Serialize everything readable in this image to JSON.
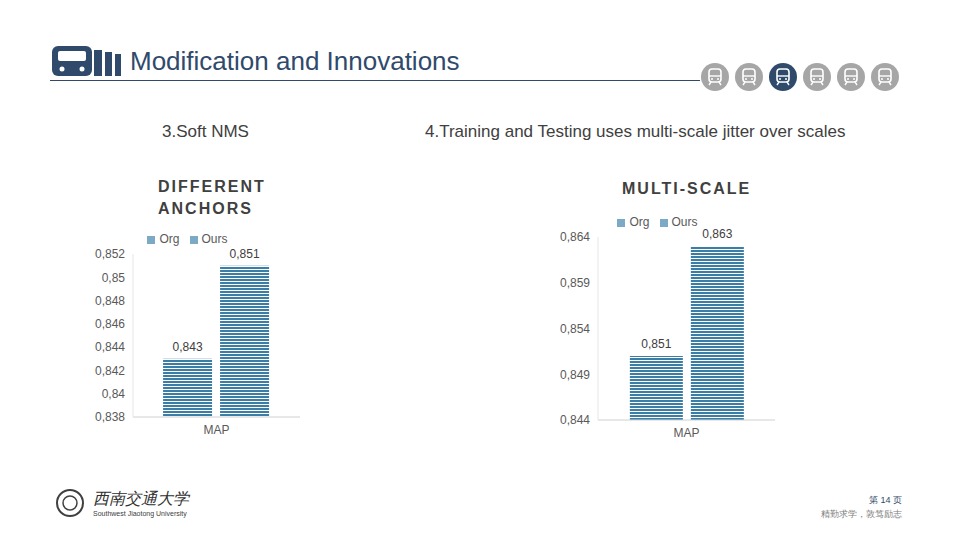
{
  "slide": {
    "title": "Modification and Innovations",
    "footer": {
      "university": "西南交通大学",
      "university_en": "Southwest Jiaotong University",
      "page": "第 14 页",
      "motto": "精勤求学，敦笃励志"
    }
  },
  "chart_data": [
    {
      "type": "bar",
      "subtitle": "3.Soft NMS",
      "title": "DIFFERENT ANCHORS",
      "categories": [
        "MAP"
      ],
      "series": [
        {
          "name": "Org",
          "color": "#3a7ea6",
          "values": [
            0.843
          ],
          "value_labels": [
            "0,843"
          ]
        },
        {
          "name": "Ours",
          "color": "#3a7ea6",
          "values": [
            0.851
          ],
          "value_labels": [
            "0,851"
          ]
        }
      ],
      "ylim": [
        0.838,
        0.852
      ],
      "yticks": [
        {
          "value": 0.838,
          "label": "0,838"
        },
        {
          "value": 0.84,
          "label": "0,84"
        },
        {
          "value": 0.842,
          "label": "0,842"
        },
        {
          "value": 0.844,
          "label": "0,844"
        },
        {
          "value": 0.846,
          "label": "0,846"
        },
        {
          "value": 0.848,
          "label": "0,848"
        },
        {
          "value": 0.85,
          "label": "0,85"
        },
        {
          "value": 0.852,
          "label": "0,852"
        }
      ],
      "data_labels": true,
      "legend": "top",
      "grid": false
    },
    {
      "type": "bar",
      "subtitle": "4.Training  and Testing uses multi-scale jitter over scales",
      "title": "MULTI-SCALE",
      "categories": [
        "MAP"
      ],
      "series": [
        {
          "name": "Org",
          "color": "#3a7ea6",
          "values": [
            0.851
          ],
          "value_labels": [
            "0,851"
          ]
        },
        {
          "name": "Ours",
          "color": "#3a7ea6",
          "values": [
            0.863
          ],
          "value_labels": [
            "0,863"
          ]
        }
      ],
      "ylim": [
        0.844,
        0.864
      ],
      "yticks": [
        {
          "value": 0.844,
          "label": "0,844"
        },
        {
          "value": 0.849,
          "label": "0,849"
        },
        {
          "value": 0.854,
          "label": "0,854"
        },
        {
          "value": 0.859,
          "label": "0,859"
        },
        {
          "value": 0.864,
          "label": "0,864"
        }
      ],
      "data_labels": true,
      "legend": "top",
      "grid": false
    }
  ]
}
